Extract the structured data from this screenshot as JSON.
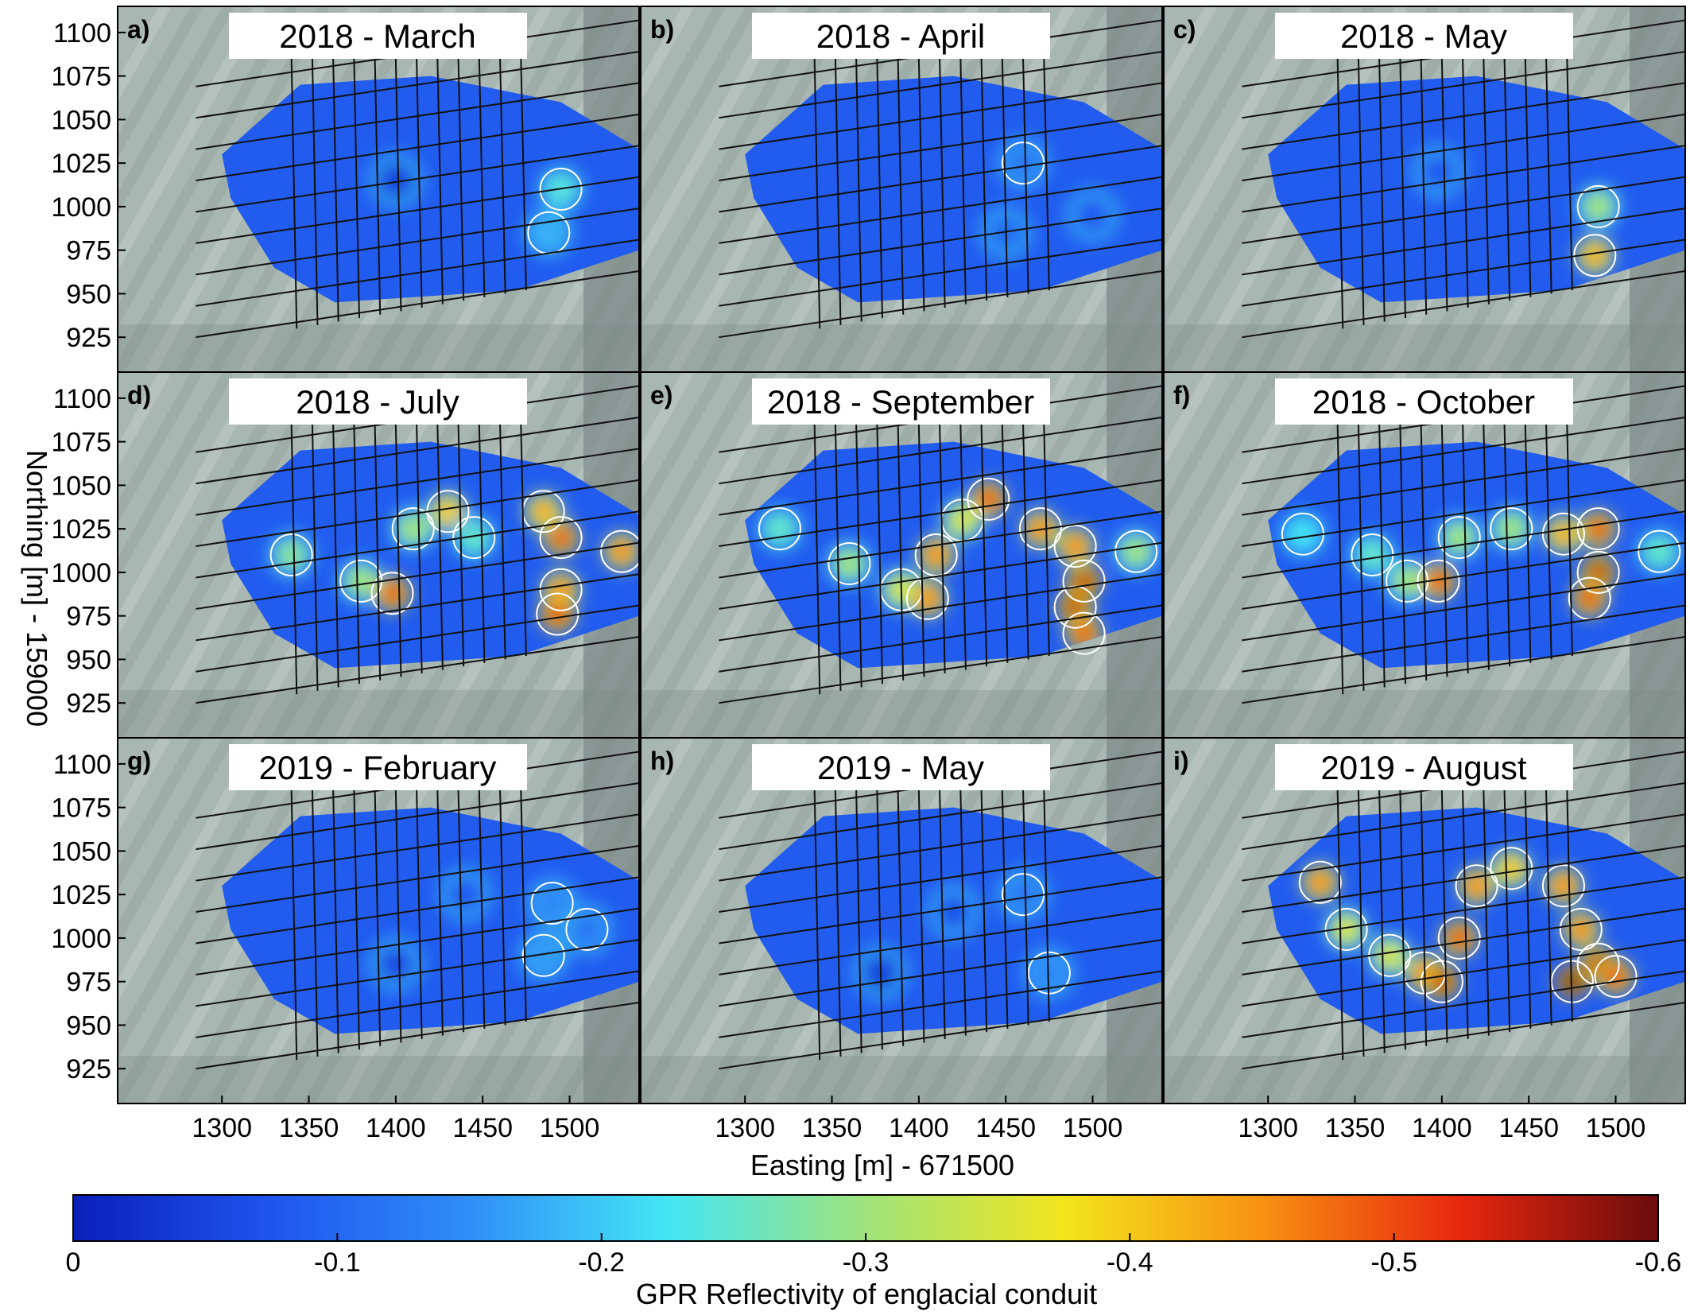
{
  "chart_data": {
    "type": "heatmap",
    "x_axis": {
      "title": "Easting [m] - 671500",
      "ticks": [
        1300,
        1350,
        1400,
        1450,
        1500
      ],
      "range": [
        1240,
        1540
      ]
    },
    "y_axis": {
      "title": "Northing [m] - 159000",
      "ticks": [
        925,
        950,
        975,
        1000,
        1025,
        1050,
        1075,
        1100
      ],
      "range": [
        905,
        1115
      ]
    },
    "colorbar": {
      "title": "GPR Reflectivity of englacial conduit",
      "ticks": [
        {
          "value": 0,
          "label": "0"
        },
        {
          "value": -0.1,
          "label": "-0.1"
        },
        {
          "value": -0.2,
          "label": "-0.2"
        },
        {
          "value": -0.3,
          "label": "-0.3"
        },
        {
          "value": -0.4,
          "label": "-0.4"
        },
        {
          "value": -0.5,
          "label": "-0.5"
        },
        {
          "value": -0.6,
          "label": "-0.6"
        }
      ],
      "range": [
        0,
        -0.6
      ],
      "colors": [
        "#0a1fb8",
        "#1f55ee",
        "#2f8ef8",
        "#44e6f4",
        "#9fe37b",
        "#f2e51c",
        "#f89112",
        "#e8270f",
        "#6a0c0c"
      ]
    },
    "panels": [
      {
        "letter": "a)",
        "title": "2018 - March",
        "hotspots": [
          [
            1495,
            1010,
            0.24
          ],
          [
            1488,
            985,
            0.18
          ],
          [
            1400,
            1015,
            0.05
          ]
        ]
      },
      {
        "letter": "b)",
        "title": "2018 - April",
        "hotspots": [
          [
            1460,
            1025,
            0.12
          ],
          [
            1450,
            985,
            0.1
          ],
          [
            1500,
            995,
            0.08
          ]
        ]
      },
      {
        "letter": "c)",
        "title": "2018 - May",
        "hotspots": [
          [
            1490,
            1000,
            0.3
          ],
          [
            1488,
            972,
            0.42
          ],
          [
            1398,
            1020,
            0.08
          ]
        ]
      },
      {
        "letter": "d)",
        "title": "2018 - July",
        "hotspots": [
          [
            1340,
            1010,
            0.28
          ],
          [
            1380,
            995,
            0.3
          ],
          [
            1398,
            988,
            0.5
          ],
          [
            1410,
            1025,
            0.3
          ],
          [
            1430,
            1035,
            0.4
          ],
          [
            1445,
            1020,
            0.25
          ],
          [
            1495,
            1020,
            0.5
          ],
          [
            1485,
            1035,
            0.42
          ],
          [
            1495,
            990,
            0.45
          ],
          [
            1493,
            976,
            0.52
          ],
          [
            1530,
            1012,
            0.45
          ]
        ]
      },
      {
        "letter": "e)",
        "title": "2018 - September",
        "hotspots": [
          [
            1320,
            1025,
            0.25
          ],
          [
            1360,
            1005,
            0.3
          ],
          [
            1390,
            990,
            0.35
          ],
          [
            1405,
            985,
            0.45
          ],
          [
            1410,
            1010,
            0.45
          ],
          [
            1425,
            1030,
            0.35
          ],
          [
            1440,
            1042,
            0.5
          ],
          [
            1470,
            1025,
            0.45
          ],
          [
            1490,
            1015,
            0.45
          ],
          [
            1495,
            995,
            0.55
          ],
          [
            1490,
            980,
            0.55
          ],
          [
            1495,
            965,
            0.5
          ],
          [
            1525,
            1012,
            0.3
          ]
        ]
      },
      {
        "letter": "f)",
        "title": "2018 - October",
        "hotspots": [
          [
            1320,
            1022,
            0.22
          ],
          [
            1360,
            1010,
            0.25
          ],
          [
            1380,
            995,
            0.3
          ],
          [
            1398,
            995,
            0.5
          ],
          [
            1410,
            1020,
            0.3
          ],
          [
            1440,
            1025,
            0.3
          ],
          [
            1470,
            1022,
            0.42
          ],
          [
            1490,
            1025,
            0.5
          ],
          [
            1490,
            1000,
            0.55
          ],
          [
            1485,
            985,
            0.5
          ],
          [
            1525,
            1012,
            0.25
          ]
        ]
      },
      {
        "letter": "g)",
        "title": "2019 - February",
        "hotspots": [
          [
            1490,
            1020,
            0.14
          ],
          [
            1485,
            990,
            0.16
          ],
          [
            1510,
            1005,
            0.12
          ],
          [
            1440,
            1025,
            0.08
          ],
          [
            1400,
            985,
            0.06
          ]
        ]
      },
      {
        "letter": "h)",
        "title": "2019 - May",
        "hotspots": [
          [
            1460,
            1025,
            0.12
          ],
          [
            1475,
            980,
            0.14
          ],
          [
            1420,
            1015,
            0.07
          ],
          [
            1378,
            980,
            0.05
          ]
        ]
      },
      {
        "letter": "i)",
        "title": "2019 - August",
        "hotspots": [
          [
            1330,
            1032,
            0.45
          ],
          [
            1345,
            1005,
            0.35
          ],
          [
            1370,
            990,
            0.35
          ],
          [
            1390,
            980,
            0.45
          ],
          [
            1400,
            975,
            0.55
          ],
          [
            1410,
            1000,
            0.5
          ],
          [
            1420,
            1030,
            0.45
          ],
          [
            1440,
            1040,
            0.4
          ],
          [
            1470,
            1030,
            0.45
          ],
          [
            1480,
            1005,
            0.45
          ],
          [
            1490,
            985,
            0.55
          ],
          [
            1475,
            975,
            0.6
          ],
          [
            1500,
            978,
            0.5
          ]
        ]
      }
    ]
  }
}
